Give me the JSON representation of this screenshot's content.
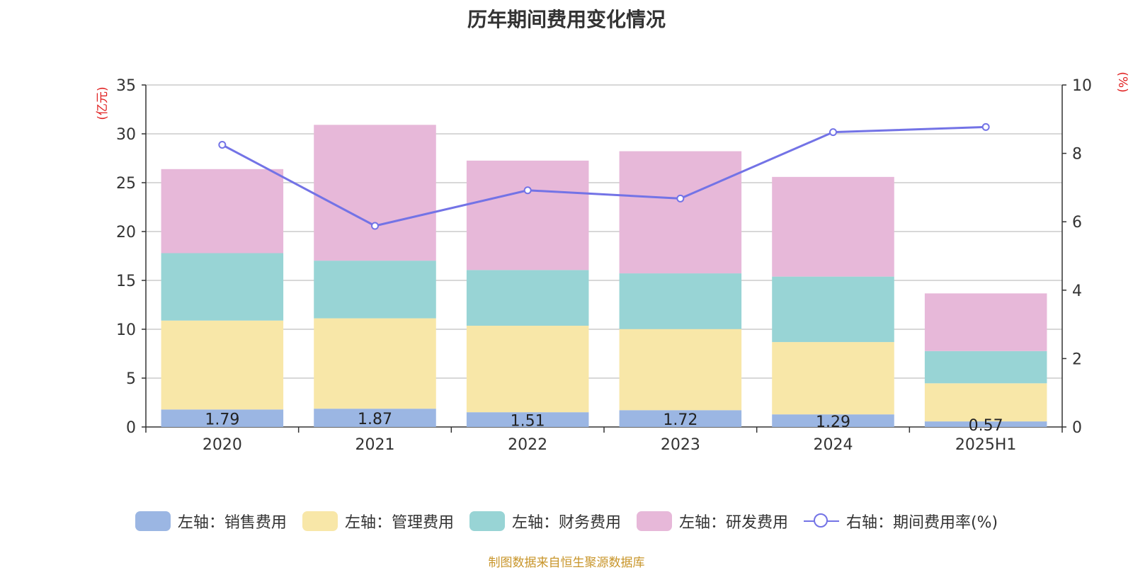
{
  "chart_data": {
    "type": "bar",
    "title": "历年期间费用变化情况",
    "categories": [
      "2020",
      "2021",
      "2022",
      "2023",
      "2024",
      "2025H1"
    ],
    "ylabel": "(亿元)",
    "y2label": "(%)",
    "ylim": [
      0,
      35
    ],
    "yticks": [
      0,
      5,
      10,
      15,
      20,
      25,
      30,
      35
    ],
    "y2lim": [
      0,
      10
    ],
    "y2ticks": [
      0,
      2,
      4,
      6,
      8,
      10
    ],
    "stacked": true,
    "grid": true,
    "legend_position": "bottom",
    "series": [
      {
        "name": "左轴：销售费用",
        "type": "bar",
        "axis": "left",
        "color": "#9bb6e3",
        "values": [
          1.79,
          1.87,
          1.51,
          1.72,
          1.29,
          0.57
        ],
        "labels": [
          "1.79",
          "1.87",
          "1.51",
          "1.72",
          "1.29",
          "0.57"
        ]
      },
      {
        "name": "左轴：管理费用",
        "type": "bar",
        "axis": "left",
        "color": "#f8e7a8",
        "values": [
          9.1,
          9.25,
          8.85,
          8.3,
          7.4,
          3.9
        ]
      },
      {
        "name": "左轴：财务费用",
        "type": "bar",
        "axis": "left",
        "color": "#98d4d5",
        "values": [
          6.9,
          5.9,
          5.7,
          5.7,
          6.7,
          3.3
        ]
      },
      {
        "name": "左轴：研发费用",
        "type": "bar",
        "axis": "left",
        "color": "#e7b8d9",
        "values": [
          8.6,
          13.9,
          11.2,
          12.5,
          10.2,
          5.9
        ]
      },
      {
        "name": "右轴：期间费用率(%)",
        "type": "line",
        "axis": "right",
        "color": "#7373e6",
        "values": [
          8.25,
          5.88,
          6.92,
          6.68,
          8.62,
          8.77
        ]
      }
    ]
  },
  "source_text": "制图数据来自恒生聚源数据库"
}
